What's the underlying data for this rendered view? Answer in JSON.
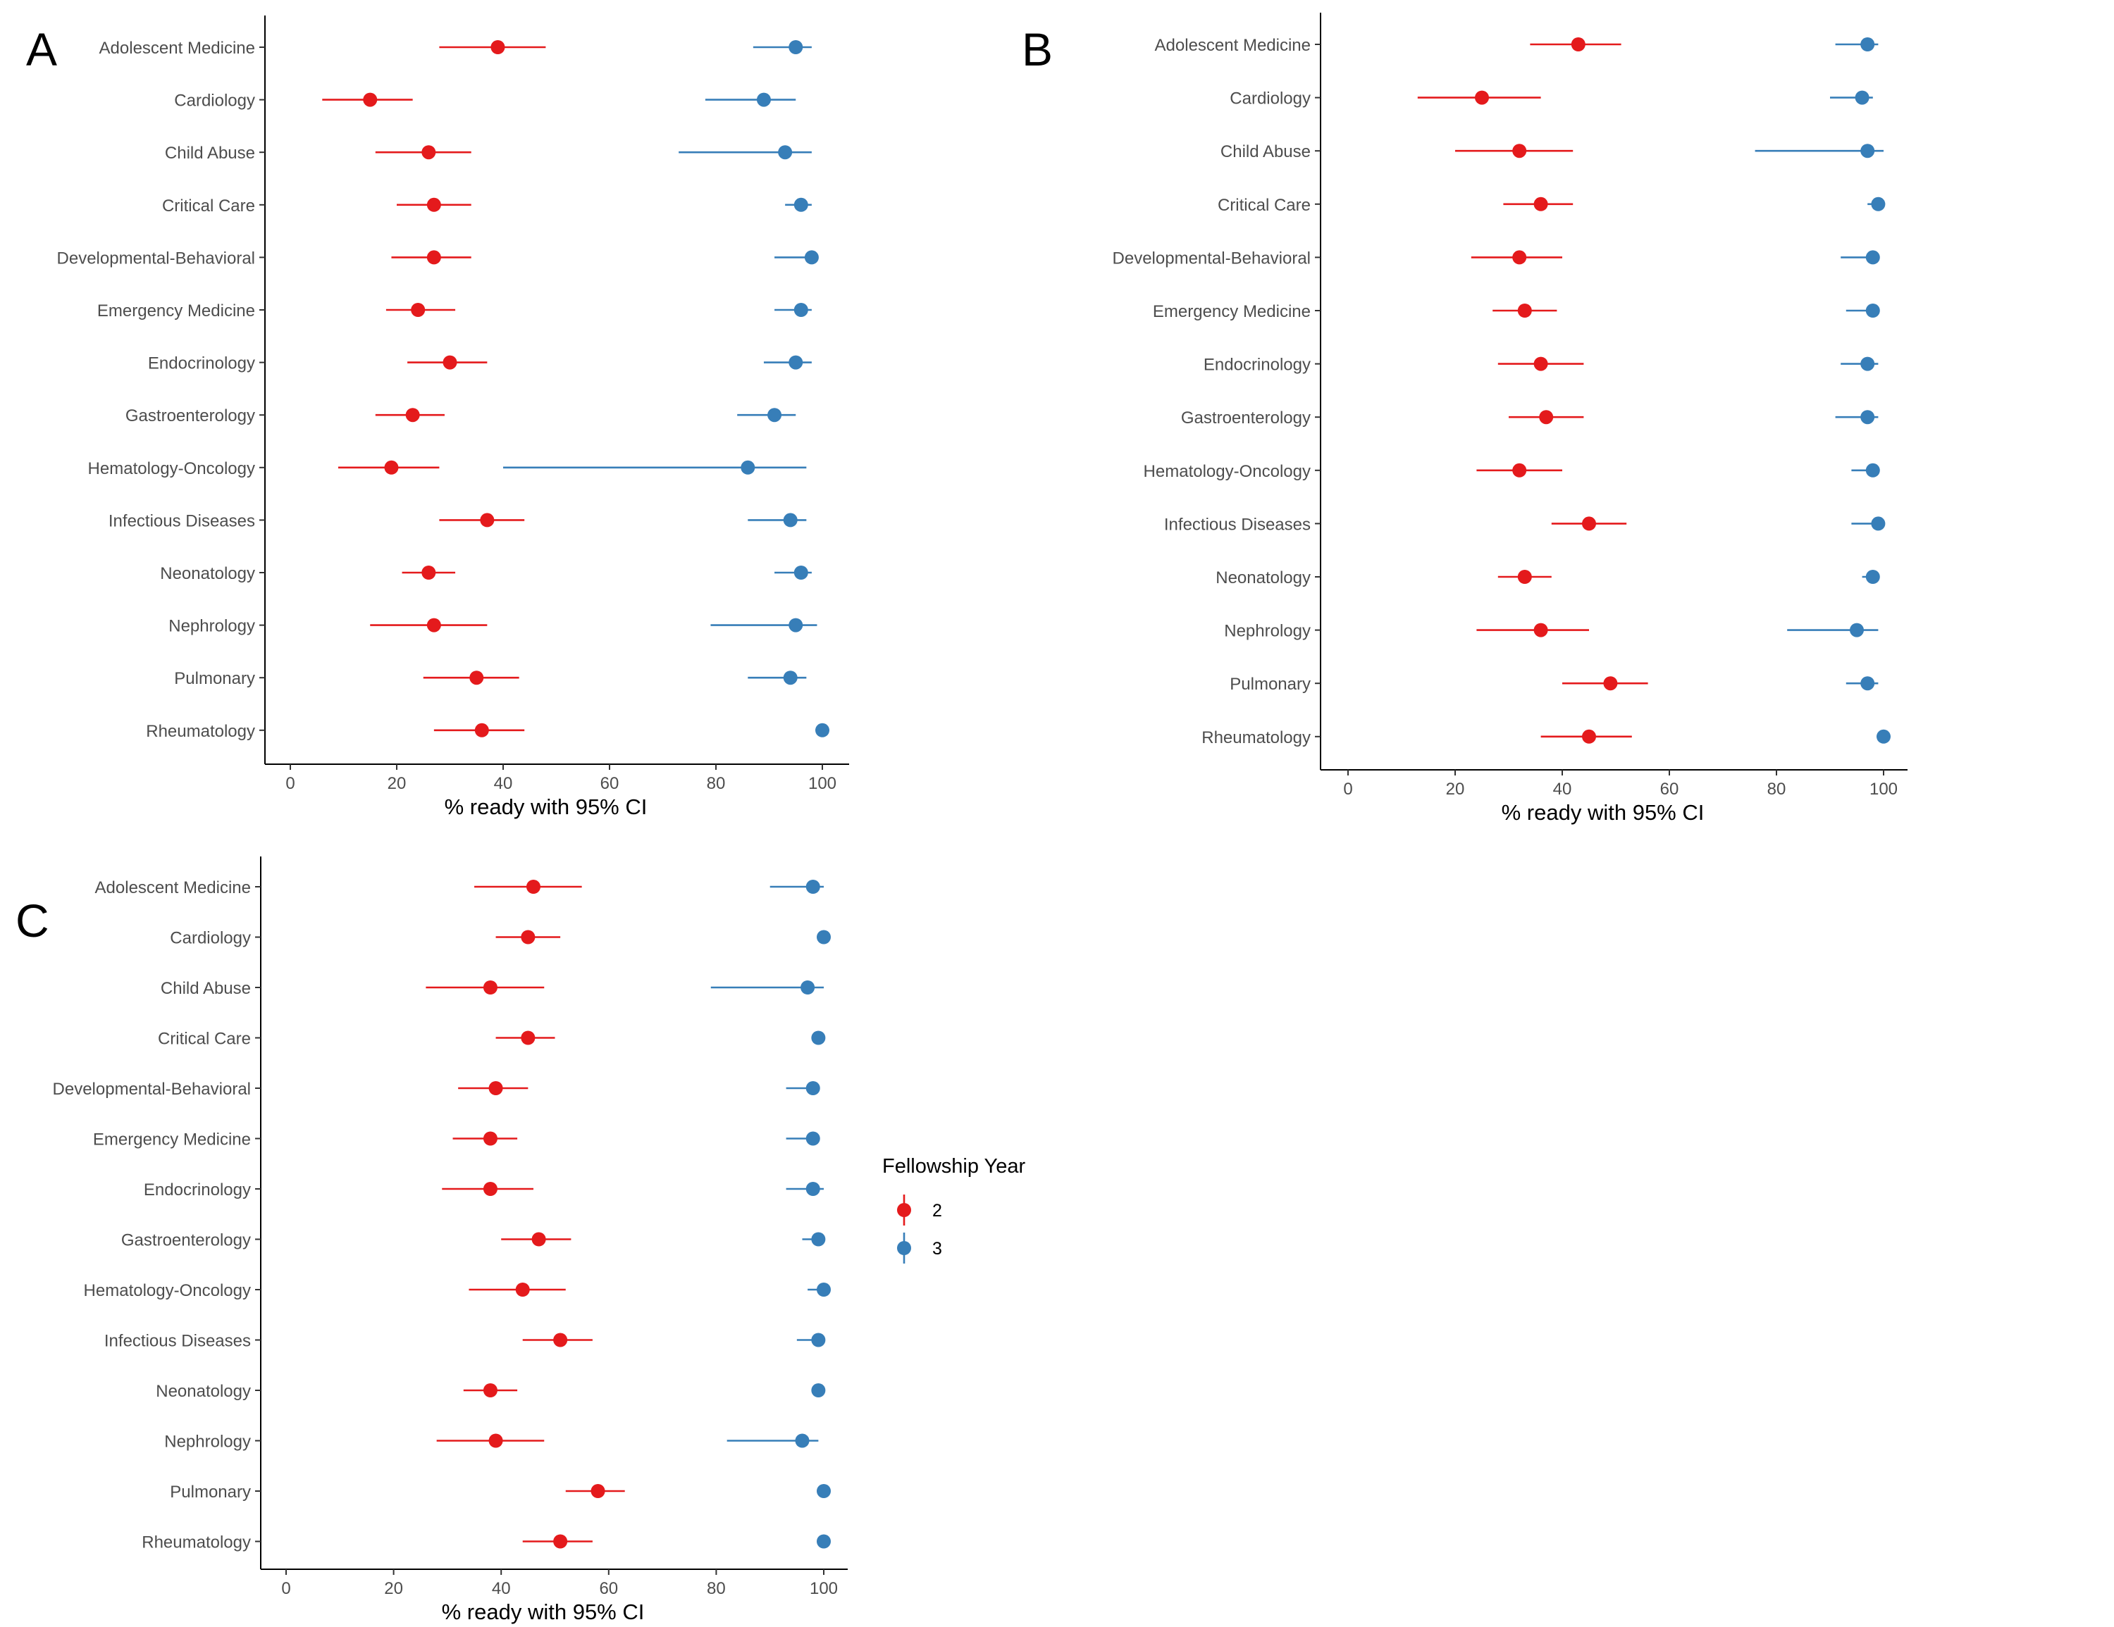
{
  "legend": {
    "title": "Fellowship Year",
    "entries": [
      {
        "label": "2",
        "color": "#e41a1c"
      },
      {
        "label": "3",
        "color": "#377eb8"
      }
    ]
  },
  "chart_data": [
    {
      "panel": "A",
      "type": "dot-errorbar",
      "xlabel": "% ready with 95% CI",
      "xlim": [
        -5,
        105
      ],
      "xticks": [
        0,
        20,
        40,
        60,
        80,
        100
      ],
      "categories": [
        "Adolescent Medicine",
        "Cardiology",
        "Child Abuse",
        "Critical Care",
        "Developmental-Behavioral",
        "Emergency Medicine",
        "Endocrinology",
        "Gastroenterology",
        "Hematology-Oncology",
        "Infectious Diseases",
        "Neonatology",
        "Nephrology",
        "Pulmonary",
        "Rheumatology"
      ],
      "series": [
        {
          "name": "2",
          "color": "#e41a1c",
          "values": [
            39,
            15,
            26,
            27,
            27,
            24,
            30,
            23,
            19,
            37,
            26,
            27,
            35,
            36
          ],
          "lower": [
            28,
            6,
            16,
            20,
            19,
            18,
            22,
            16,
            9,
            28,
            21,
            15,
            25,
            27
          ],
          "upper": [
            48,
            23,
            34,
            34,
            34,
            31,
            37,
            29,
            28,
            44,
            31,
            37,
            43,
            44
          ]
        },
        {
          "name": "3",
          "color": "#377eb8",
          "values": [
            95,
            89,
            93,
            96,
            98,
            96,
            95,
            91,
            86,
            94,
            96,
            95,
            94,
            100
          ],
          "lower": [
            87,
            78,
            73,
            93,
            91,
            91,
            89,
            84,
            40,
            86,
            91,
            79,
            86,
            100
          ],
          "upper": [
            98,
            95,
            98,
            98,
            98,
            98,
            98,
            95,
            97,
            97,
            98,
            99,
            97,
            100
          ]
        }
      ]
    },
    {
      "panel": "B",
      "type": "dot-errorbar",
      "xlabel": "% ready with 95% CI",
      "xlim": [
        -5,
        105
      ],
      "xticks": [
        0,
        20,
        40,
        60,
        80,
        100
      ],
      "categories": [
        "Adolescent Medicine",
        "Cardiology",
        "Child Abuse",
        "Critical Care",
        "Developmental-Behavioral",
        "Emergency Medicine",
        "Endocrinology",
        "Gastroenterology",
        "Hematology-Oncology",
        "Infectious Diseases",
        "Neonatology",
        "Nephrology",
        "Pulmonary",
        "Rheumatology"
      ],
      "series": [
        {
          "name": "2",
          "color": "#e41a1c",
          "values": [
            43,
            25,
            32,
            36,
            32,
            33,
            36,
            37,
            32,
            45,
            33,
            36,
            49,
            45
          ],
          "lower": [
            34,
            13,
            20,
            29,
            23,
            27,
            28,
            30,
            24,
            38,
            28,
            24,
            40,
            36
          ],
          "upper": [
            51,
            36,
            42,
            42,
            40,
            39,
            44,
            44,
            40,
            52,
            38,
            45,
            56,
            53
          ]
        },
        {
          "name": "3",
          "color": "#377eb8",
          "values": [
            97,
            96,
            97,
            99,
            98,
            98,
            97,
            97,
            98,
            99,
            98,
            95,
            97,
            100
          ],
          "lower": [
            91,
            90,
            76,
            97,
            92,
            93,
            92,
            91,
            94,
            94,
            96,
            82,
            93,
            100
          ],
          "upper": [
            99,
            98,
            100,
            99,
            99,
            99,
            99,
            99,
            99,
            100,
            99,
            99,
            99,
            100
          ]
        }
      ]
    },
    {
      "panel": "C",
      "type": "dot-errorbar",
      "xlabel": "% ready with 95% CI",
      "xlim": [
        -5,
        105
      ],
      "xticks": [
        0,
        20,
        40,
        60,
        80,
        100
      ],
      "categories": [
        "Adolescent Medicine",
        "Cardiology",
        "Child Abuse",
        "Critical Care",
        "Developmental-Behavioral",
        "Emergency Medicine",
        "Endocrinology",
        "Gastroenterology",
        "Hematology-Oncology",
        "Infectious Diseases",
        "Neonatology",
        "Nephrology",
        "Pulmonary",
        "Rheumatology"
      ],
      "series": [
        {
          "name": "2",
          "color": "#e41a1c",
          "values": [
            46,
            45,
            38,
            45,
            39,
            38,
            38,
            47,
            44,
            51,
            38,
            39,
            58,
            51
          ],
          "lower": [
            35,
            39,
            26,
            39,
            32,
            31,
            29,
            40,
            34,
            44,
            33,
            28,
            52,
            44
          ],
          "upper": [
            55,
            51,
            48,
            50,
            45,
            43,
            46,
            53,
            52,
            57,
            43,
            48,
            63,
            57
          ]
        },
        {
          "name": "3",
          "color": "#377eb8",
          "values": [
            98,
            100,
            97,
            99,
            98,
            98,
            98,
            99,
            100,
            99,
            99,
            96,
            100,
            100
          ],
          "lower": [
            90,
            100,
            79,
            99,
            93,
            93,
            93,
            96,
            97,
            95,
            98,
            82,
            100,
            100
          ],
          "upper": [
            100,
            100,
            100,
            99,
            99,
            99,
            100,
            100,
            100,
            100,
            100,
            99,
            100,
            100
          ]
        }
      ]
    }
  ],
  "panels_layout_note": ""
}
